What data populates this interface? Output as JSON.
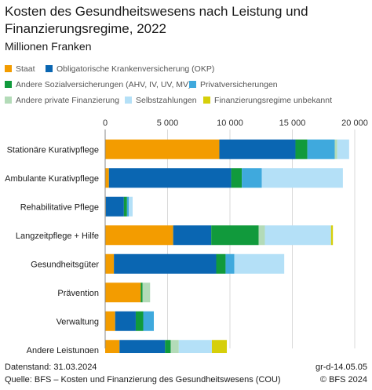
{
  "title": "Kosten des Gesundheitswesens nach Leistung und Finanzierungsregime, 2022",
  "unit": "Millionen Franken",
  "footer": {
    "stand": "Datenstand: 31.03.2024",
    "quelle": "Quelle: BFS – Kosten und Finanzierung des Gesundheitswesens (COU)",
    "code": "gr-d-14.05.05",
    "copyright": "© BFS 2024"
  },
  "chart_data": {
    "type": "bar",
    "orientation": "horizontal",
    "stacked": true,
    "title": "Kosten des Gesundheitswesens nach Leistung und Finanzierungsregime, 2022",
    "subtitle": "Millionen Franken",
    "legend_position": "top",
    "grid": true,
    "xlim": [
      0,
      20000
    ],
    "xticks": [
      0,
      5000,
      10000,
      15000,
      20000
    ],
    "xtick_labels": [
      "0",
      "5 000",
      "10 000",
      "15 000",
      "20 000"
    ],
    "categories": [
      "Stationäre Kurativpflege",
      "Ambulante Kurativpflege",
      "Rehabilitative Pflege",
      "Langzeitpflege + Hilfe",
      "Gesundheitsgüter",
      "Prävention",
      "Verwaltung",
      "Andere Leistungen"
    ],
    "series": [
      {
        "name": "Staat",
        "color": "#f39c00",
        "values": [
          9150,
          300,
          50,
          5450,
          700,
          2850,
          800,
          1150
        ]
      },
      {
        "name": "Obligatorische Krankenversicherung (OKP)",
        "color": "#0a66b2",
        "values": [
          6100,
          9800,
          1450,
          3050,
          8200,
          0,
          1650,
          3650
        ]
      },
      {
        "name": "Andere Sozialversicherungen (AHV, IV, UV, MV)",
        "color": "#119a3c",
        "values": [
          950,
          850,
          250,
          3800,
          750,
          150,
          600,
          450
        ]
      },
      {
        "name": "Privatversicherungen",
        "color": "#3fa9dd",
        "values": [
          2200,
          1600,
          150,
          0,
          700,
          0,
          850,
          0
        ]
      },
      {
        "name": "Andere private Finanzierung",
        "color": "#b3dbb8",
        "values": [
          200,
          0,
          0,
          500,
          0,
          600,
          0,
          650
        ]
      },
      {
        "name": "Selbstzahlungen",
        "color": "#b4e0f7",
        "values": [
          950,
          6500,
          300,
          5300,
          4000,
          0,
          0,
          2650
        ]
      },
      {
        "name": "Finanzierungsregime unbekannt",
        "color": "#d6cf0a",
        "values": [
          0,
          0,
          0,
          150,
          0,
          0,
          0,
          1200
        ]
      }
    ]
  }
}
